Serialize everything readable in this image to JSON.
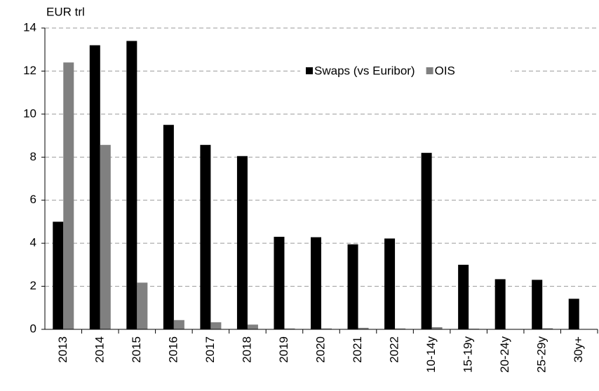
{
  "chart_data": {
    "type": "bar",
    "y_label": "EUR trl",
    "categories": [
      "2013",
      "2014",
      "2015",
      "2016",
      "2017",
      "2018",
      "2019",
      "2020",
      "2021",
      "2022",
      "10-14y",
      "15-19y",
      "20-24y",
      "25-29y",
      "30y+"
    ],
    "series": [
      {
        "name": "Swaps (vs Euribor)",
        "color": "#000000",
        "values": [
          5.0,
          13.2,
          13.4,
          9.5,
          8.57,
          8.05,
          4.3,
          4.28,
          3.95,
          4.22,
          8.2,
          3.0,
          2.33,
          2.3,
          1.42
        ]
      },
      {
        "name": "OIS",
        "color": "#808080",
        "values": [
          12.4,
          8.57,
          2.17,
          0.43,
          0.33,
          0.22,
          0.04,
          0.04,
          0.07,
          0.04,
          0.1,
          0.03,
          0.01,
          0.05,
          0.0
        ]
      }
    ],
    "ylim": [
      0,
      14
    ],
    "yticks": [
      0,
      2,
      4,
      6,
      8,
      10,
      12,
      14
    ],
    "grid": true,
    "legend": "top"
  }
}
